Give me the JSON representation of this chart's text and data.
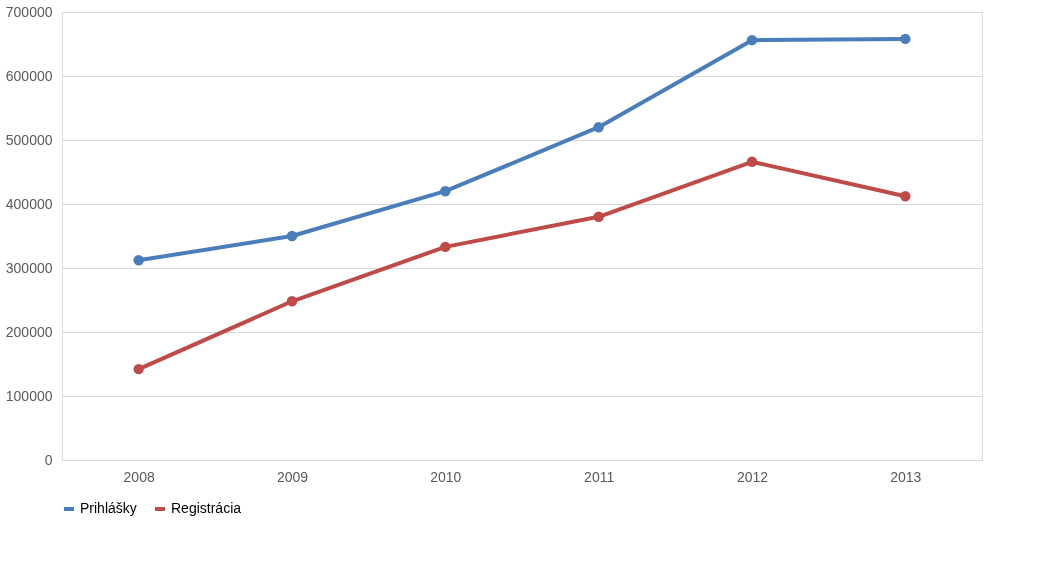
{
  "chart_data": {
    "type": "line",
    "categories": [
      "2008",
      "2009",
      "2010",
      "2011",
      "2012",
      "2013"
    ],
    "series": [
      {
        "name": "Prihlášky",
        "color": "#4a7ebb",
        "values": [
          312000,
          350000,
          420000,
          520000,
          656000,
          658000
        ]
      },
      {
        "name": "Registrácia",
        "color": "#be4b48",
        "values": [
          142000,
          248000,
          333000,
          380000,
          466000,
          412000
        ]
      }
    ],
    "ylim": [
      0,
      700000
    ],
    "yticks": [
      0,
      100000,
      200000,
      300000,
      400000,
      500000,
      600000,
      700000
    ],
    "grid": "y",
    "legend": "bottom",
    "marker": "circle",
    "line_style": "solid"
  }
}
